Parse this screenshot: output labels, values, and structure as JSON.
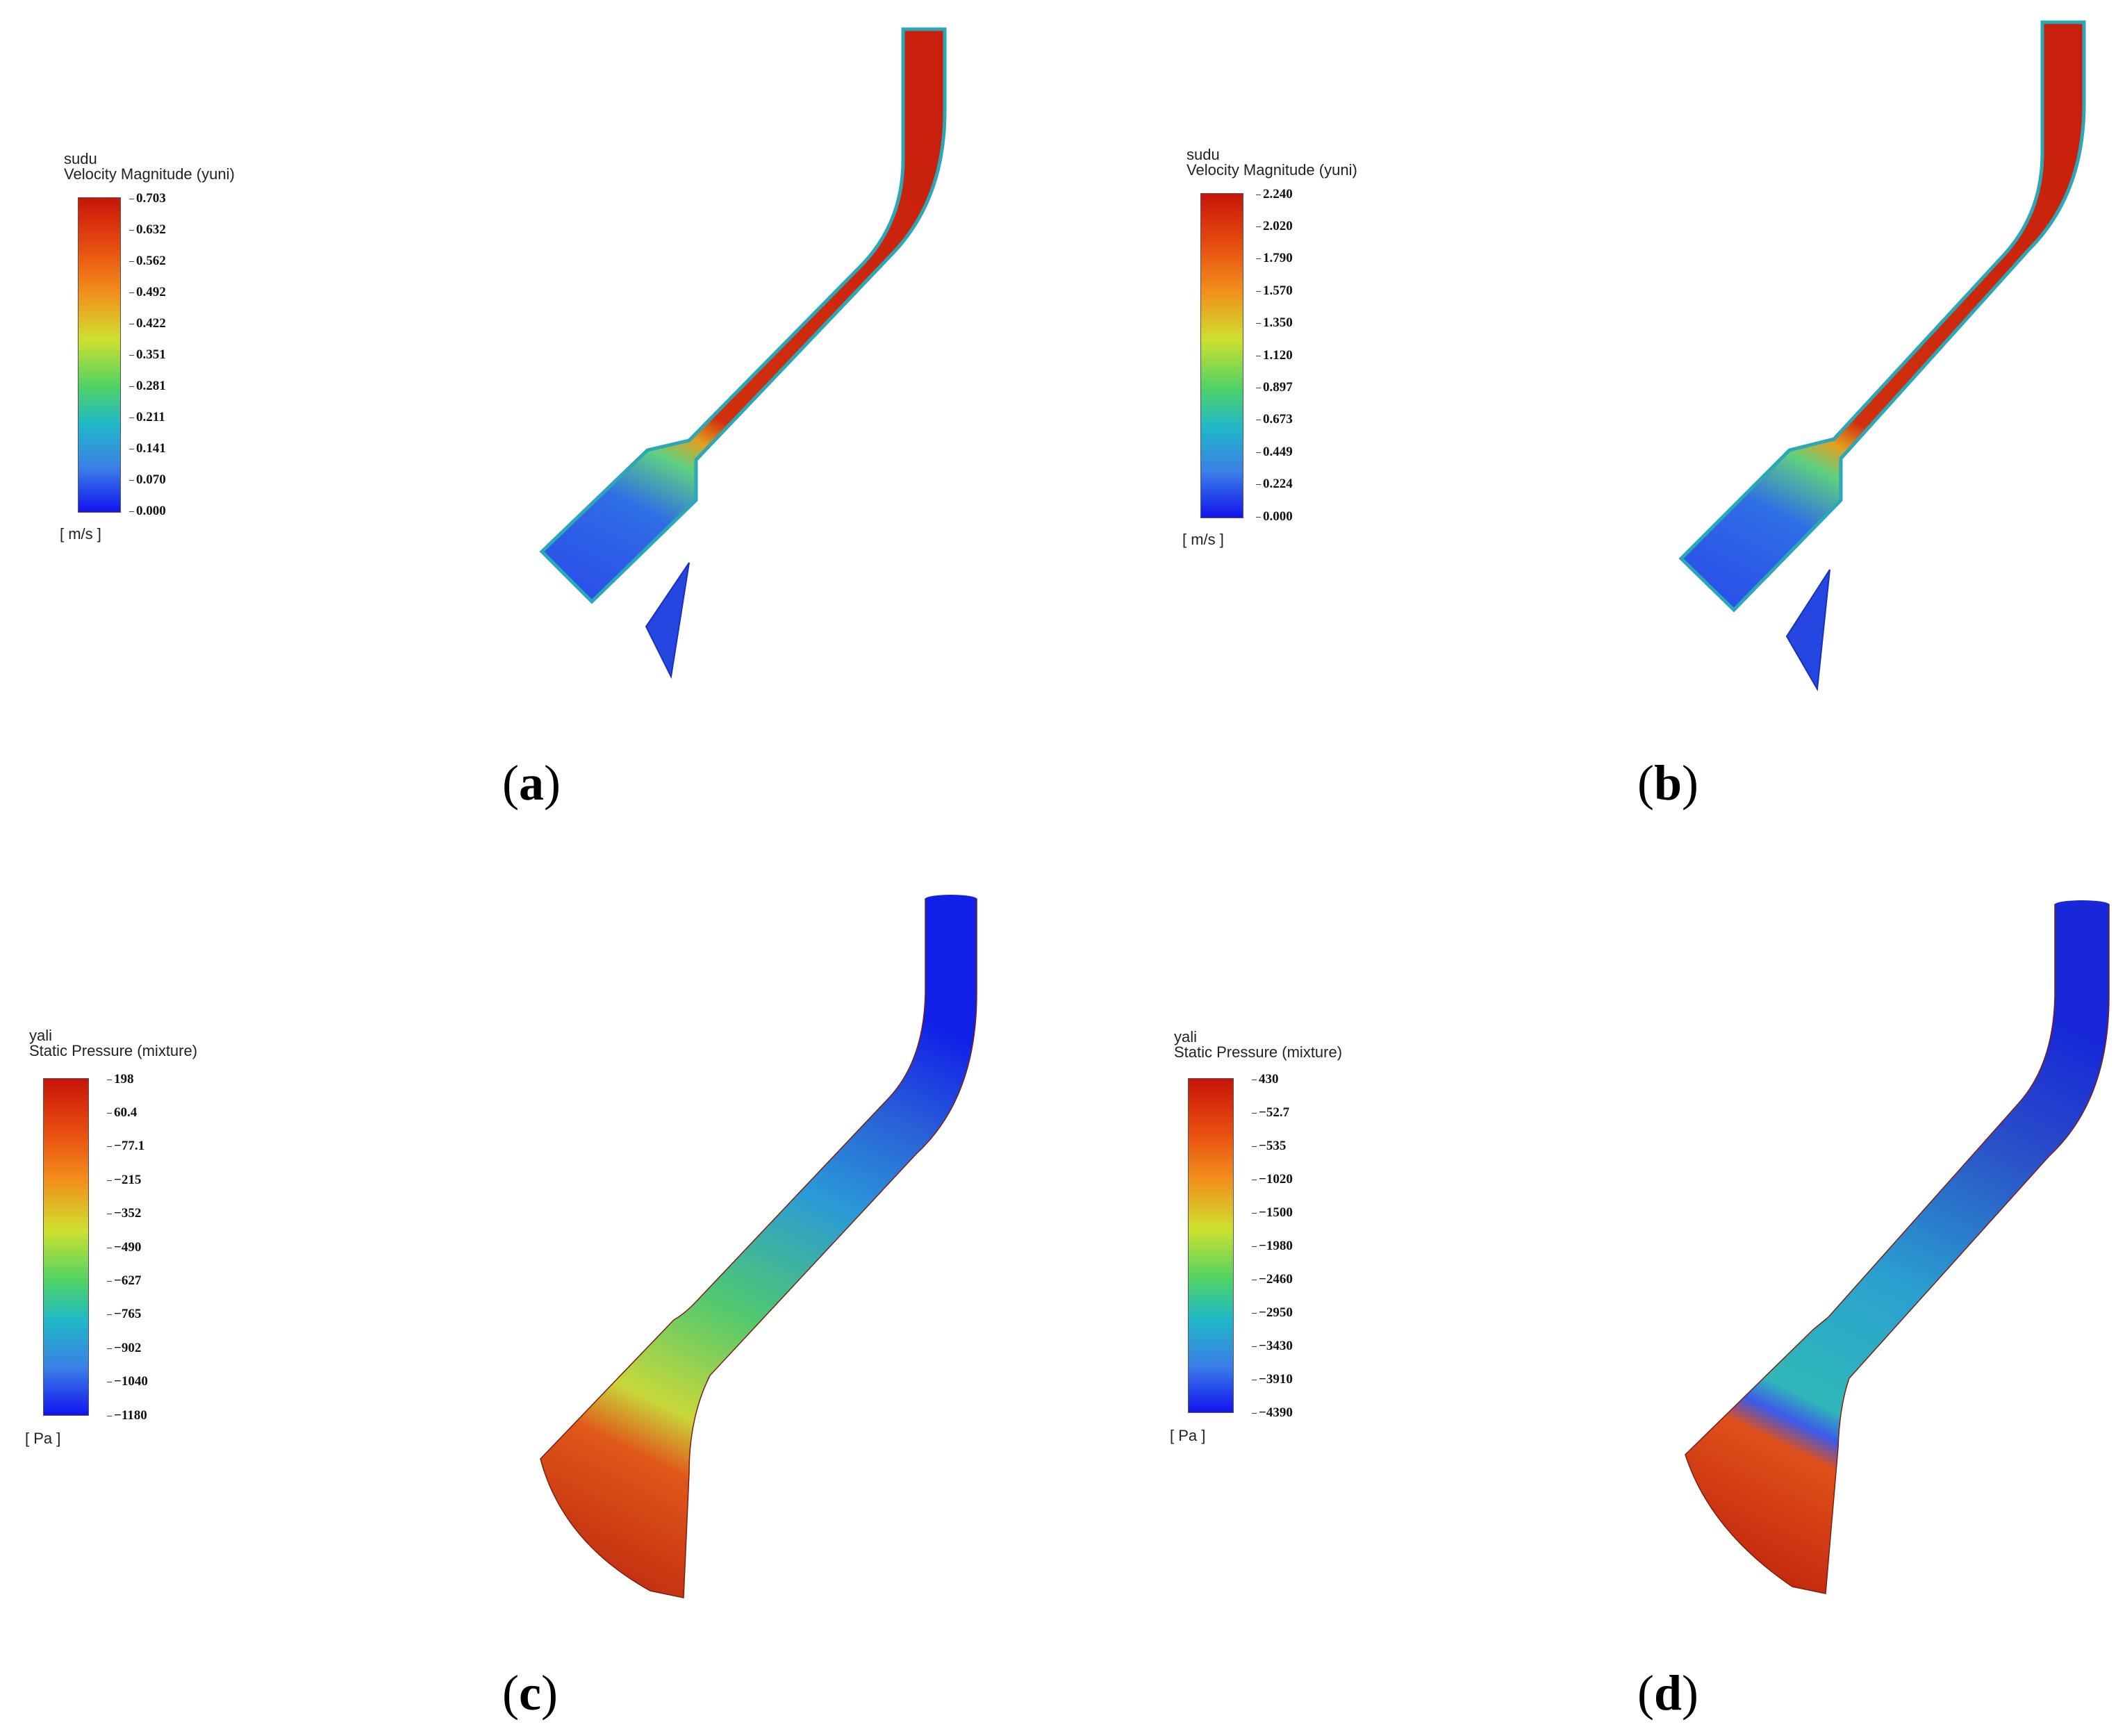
{
  "panels": [
    {
      "id": "a",
      "caption_letter": "a",
      "legend": {
        "variable": "sudu",
        "quantity": "Velocity Magnitude (yuni)",
        "unit": "[ m/s ]",
        "ticks": [
          "0.703",
          "0.632",
          "0.562",
          "0.492",
          "0.422",
          "0.351",
          "0.281",
          "0.211",
          "0.141",
          "0.070",
          "0.000"
        ]
      }
    },
    {
      "id": "b",
      "caption_letter": "b",
      "legend": {
        "variable": "sudu",
        "quantity": "Velocity Magnitude (yuni)",
        "unit": "[ m/s ]",
        "ticks": [
          "2.240",
          "2.020",
          "1.790",
          "1.570",
          "1.350",
          "1.120",
          "0.897",
          "0.673",
          "0.449",
          "0.224",
          "0.000"
        ]
      }
    },
    {
      "id": "c",
      "caption_letter": "c",
      "legend": {
        "variable": "yali",
        "quantity": "Static Pressure (mixture)",
        "unit": "[ Pa ]",
        "ticks": [
          "198",
          "60.4",
          "−77.1",
          "−215",
          "−352",
          "−490",
          "−627",
          "−765",
          "−902",
          "−1040",
          "−1180"
        ]
      }
    },
    {
      "id": "d",
      "caption_letter": "d",
      "legend": {
        "variable": "yali",
        "quantity": "Static Pressure (mixture)",
        "unit": "[ Pa ]",
        "ticks": [
          "430",
          "−52.7",
          "−535",
          "−1020",
          "−1500",
          "−1980",
          "−2460",
          "−2950",
          "−3430",
          "−3910",
          "−4390"
        ]
      }
    }
  ],
  "colors": {
    "red": "#c8140a",
    "orange": "#ee7a1a",
    "yellow": "#cfe02e",
    "green": "#4fd364",
    "cyan": "#20b8c8",
    "blue": "#1214ee"
  }
}
